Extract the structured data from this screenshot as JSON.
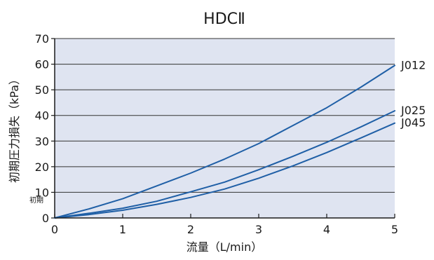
{
  "chart_data": {
    "type": "line",
    "title": "HDCⅡ",
    "xlabel": "流量（L/min）",
    "ylabel": "初期圧力損失（kPa）",
    "stray_label": "初期",
    "xlim": [
      0,
      5
    ],
    "ylim": [
      0,
      70
    ],
    "xticks": [
      0,
      1,
      2,
      3,
      4,
      5
    ],
    "yticks": [
      0,
      10,
      20,
      30,
      40,
      50,
      60,
      70
    ],
    "grid": true,
    "plot_background": "#dfe4f1",
    "line_color": "#1f5fa6",
    "series": [
      {
        "name": "J012",
        "x": [
          0,
          0.5,
          1,
          1.5,
          2,
          2.5,
          3,
          3.5,
          4,
          4.5,
          5
        ],
        "values": [
          0,
          3.5,
          7.5,
          12.5,
          17.5,
          23.0,
          29.0,
          36.0,
          43.0,
          51.0,
          59.5
        ]
      },
      {
        "name": "J025",
        "x": [
          0,
          0.5,
          1,
          1.5,
          2,
          2.5,
          3,
          3.5,
          4,
          4.5,
          5
        ],
        "values": [
          0,
          1.8,
          3.8,
          6.5,
          10.2,
          14.0,
          18.8,
          24.0,
          29.5,
          35.5,
          41.8
        ]
      },
      {
        "name": "J045",
        "x": [
          0,
          0.5,
          1,
          1.5,
          2,
          2.5,
          3,
          3.5,
          4,
          4.5,
          5
        ],
        "values": [
          0,
          1.3,
          3.0,
          5.3,
          8.0,
          11.3,
          15.5,
          20.3,
          25.5,
          31.2,
          37.0
        ]
      }
    ]
  }
}
